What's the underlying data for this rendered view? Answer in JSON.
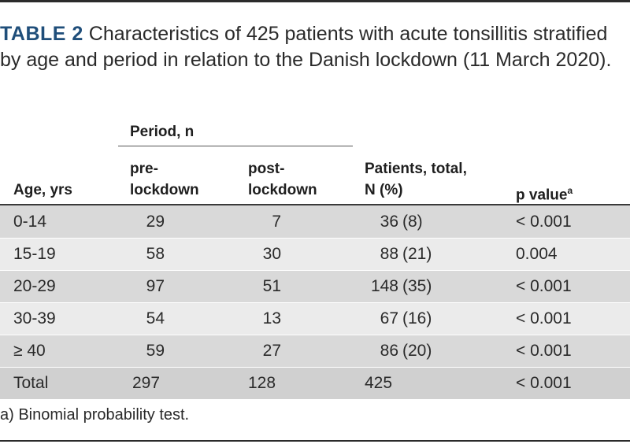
{
  "caption": {
    "label": "TABLE 2",
    "text": " Characteristics of 425 patients with acute tonsillitis stratified by age and period in relation to the Danish lockdown (11 March 2020)."
  },
  "headers": {
    "period_group": "Period, n",
    "age": "Age, yrs",
    "pre_line1": "pre-",
    "pre_line2": "lockdown",
    "post_line1": "post-",
    "post_line2": "lockdown",
    "total_line1": "Patients, total,",
    "total_line2": "N (%)",
    "pvalue": "p value",
    "pvalue_sup": "a"
  },
  "rows": [
    {
      "age": "0-14",
      "pre": "29",
      "post": "7",
      "total_n": "36",
      "total_pct": "(8)",
      "p": "< 0.001"
    },
    {
      "age": "15-19",
      "pre": "58",
      "post": "30",
      "total_n": "88",
      "total_pct": "(21)",
      "p": "0.004"
    },
    {
      "age": "20-29",
      "pre": "97",
      "post": "51",
      "total_n": "148",
      "total_pct": "(35)",
      "p": "< 0.001"
    },
    {
      "age": "30-39",
      "pre": "54",
      "post": "13",
      "total_n": "67",
      "total_pct": "(16)",
      "p": "< 0.001"
    },
    {
      "age": "≥ 40",
      "pre": "59",
      "post": "27",
      "total_n": "86",
      "total_pct": "(20)",
      "p": "< 0.001"
    },
    {
      "age": "Total",
      "pre": "297",
      "post": "128",
      "total_n": "425",
      "total_pct": "",
      "p": "< 0.001"
    }
  ],
  "footnote": "a) Binomial probability test."
}
